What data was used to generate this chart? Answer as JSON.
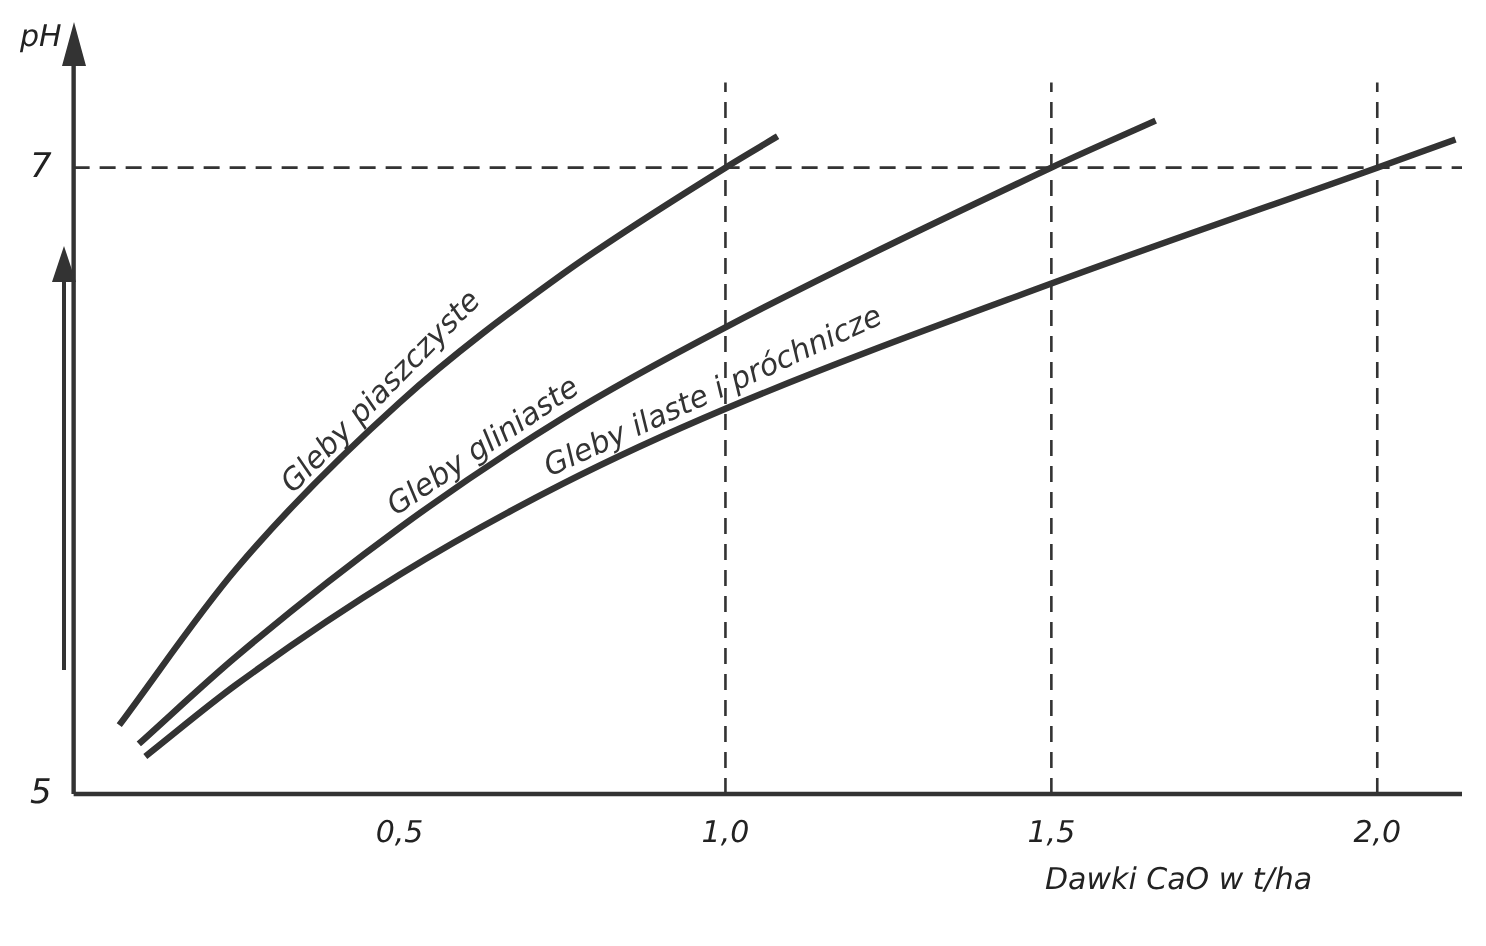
{
  "chart_data": {
    "type": "line",
    "xlabel": "Dawki CaO w t/ha",
    "ylabel": "pH",
    "series": [
      {
        "name": "Gleby piaszczyste",
        "color": "#333333",
        "x": [
          0.07,
          0.25,
          0.5,
          0.75,
          1.0,
          1.08
        ],
        "values": [
          5.22,
          5.72,
          6.25,
          6.66,
          7.0,
          7.1
        ]
      },
      {
        "name": "Gleby gliniaste",
        "color": "#333333",
        "x": [
          0.1,
          0.25,
          0.5,
          0.75,
          1.0,
          1.5,
          1.66
        ],
        "values": [
          5.16,
          5.44,
          5.85,
          6.2,
          6.49,
          7.0,
          7.15
        ]
      },
      {
        "name": "Gleby ilaste i próchnicze",
        "color": "#333333",
        "x": [
          0.11,
          0.25,
          0.5,
          0.75,
          1.0,
          1.5,
          2.0,
          2.12
        ],
        "values": [
          5.12,
          5.35,
          5.7,
          5.99,
          6.23,
          6.63,
          7.0,
          7.09
        ]
      }
    ],
    "xlim": [
      0,
      2.13
    ],
    "ylim": [
      5,
      7.4
    ],
    "xticks": [
      {
        "value": 0.5,
        "label": "0,5"
      },
      {
        "value": 1.0,
        "label": "1,0"
      },
      {
        "value": 1.5,
        "label": "1,5"
      },
      {
        "value": 2.0,
        "label": "2,0"
      }
    ],
    "yticks": [
      5,
      7
    ],
    "ref_lines": [
      {
        "axis": "y",
        "value": 7,
        "line_style": "dashed"
      },
      {
        "axis": "x",
        "value": 1.0,
        "line_style": "dashed"
      },
      {
        "axis": "x",
        "value": 1.5,
        "line_style": "dashed"
      },
      {
        "axis": "x",
        "value": 2.0,
        "line_style": "dashed"
      }
    ],
    "grid": false,
    "legend": false,
    "marker": "none",
    "line_style": "solid"
  }
}
